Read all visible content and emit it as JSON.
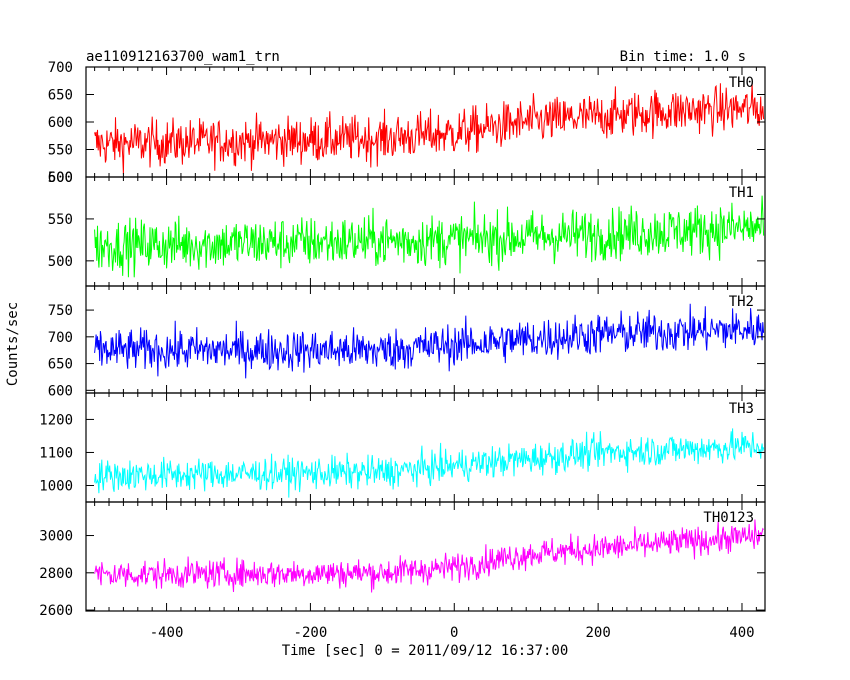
{
  "chart_data": {
    "type": "line",
    "title": "ae110912163700_wam1_trn",
    "bin_time": "Bin time: 1.0 s",
    "xlabel": "Time [sec] 0 = 2011/09/12 16:37:00",
    "ylabel": "Counts/sec",
    "xlim": [
      -512,
      432
    ],
    "xticks": [
      -400,
      -200,
      0,
      200,
      400
    ],
    "grid": false,
    "panels": [
      {
        "name": "TH0",
        "color": "#ff0000",
        "ylim": [
          500,
          700
        ],
        "yticks": [
          500,
          550,
          600,
          650,
          700
        ],
        "trend": {
          "x": [
            -500,
            -100,
            0,
            100,
            300,
            430
          ],
          "y": [
            560,
            570,
            580,
            600,
            620,
            625
          ]
        },
        "noise": 30
      },
      {
        "name": "TH1",
        "color": "#00ff00",
        "ylim": [
          470,
          600
        ],
        "yticks": [
          500,
          550,
          600
        ],
        "trend": {
          "x": [
            -500,
            0,
            430
          ],
          "y": [
            518,
            525,
            540
          ]
        },
        "noise": 22
      },
      {
        "name": "TH2",
        "color": "#0000ff",
        "ylim": [
          595,
          795
        ],
        "yticks": [
          600,
          650,
          700,
          750
        ],
        "trend": {
          "x": [
            -500,
            -100,
            0,
            200,
            430
          ],
          "y": [
            675,
            675,
            685,
            705,
            715
          ]
        },
        "noise": 28
      },
      {
        "name": "TH3",
        "color": "#00ffff",
        "ylim": [
          950,
          1280
        ],
        "yticks": [
          1000,
          1100,
          1200
        ],
        "trend": {
          "x": [
            -500,
            -100,
            0,
            200,
            430
          ],
          "y": [
            1030,
            1040,
            1060,
            1100,
            1120
          ]
        },
        "noise": 35
      },
      {
        "name": "TH0123",
        "color": "#ff00ff",
        "ylim": [
          2595,
          3180
        ],
        "yticks": [
          2600,
          2800,
          3000
        ],
        "trend": {
          "x": [
            -500,
            -100,
            0,
            100,
            430
          ],
          "y": [
            2790,
            2800,
            2830,
            2900,
            3000
          ]
        },
        "noise": 55
      }
    ]
  }
}
